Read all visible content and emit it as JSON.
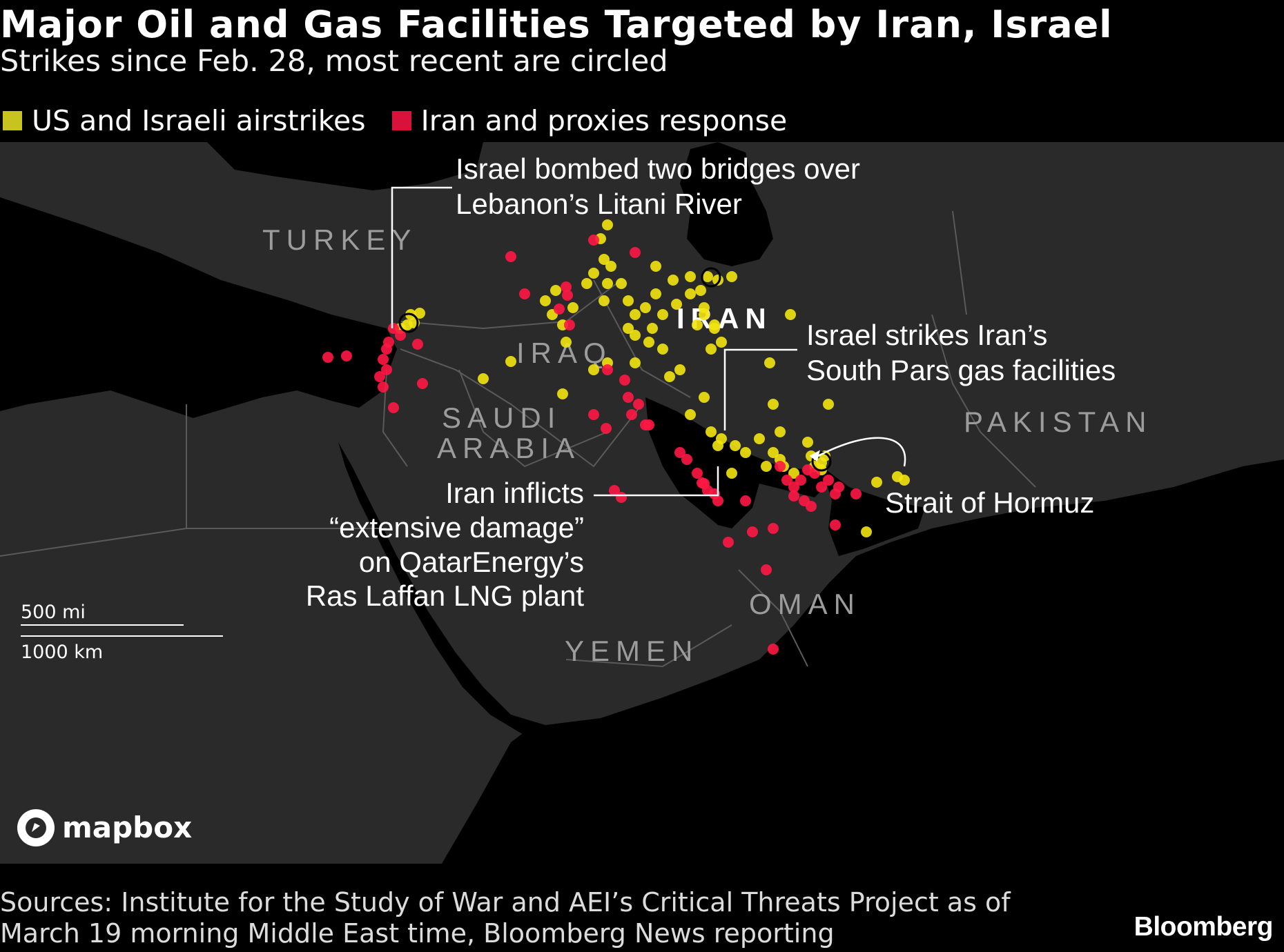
{
  "title": "Major Oil and Gas Facilities Targeted by Iran, Israel",
  "subtitle": "Strikes since Feb. 28, most recent are circled",
  "legend": [
    {
      "label": "US and Israeli airstrikes",
      "color": "#c9c320"
    },
    {
      "label": "Iran and proxies response",
      "color": "#d8123a"
    }
  ],
  "map": {
    "country_labels": [
      "TURKEY",
      "IRAN",
      "IRAQ",
      "SAUDI",
      "ARABIA",
      "PAKISTAN",
      "OMAN",
      "YEMEN"
    ],
    "annotations": {
      "litani": [
        "Israel bombed two bridges over",
        "Lebanon’s Litani River"
      ],
      "south_pars": [
        "Israel strikes Iran’s",
        "South Pars gas facilities"
      ],
      "hormuz": [
        "Strait of Hormuz"
      ],
      "ras_laffan": [
        "Iran inflicts",
        "“extensive damage”",
        "on QatarEnergy’s",
        "Ras Laffan LNG plant"
      ]
    },
    "scale": {
      "miles": "500 mi",
      "km": "1000 km"
    },
    "attribution": "mapbox",
    "colors": {
      "us_israel": "#f2e40f",
      "iran_proxies": "#ff1744",
      "land": "#2a2a2a",
      "water": "#000000"
    }
  },
  "sources": "Sources: Institute for the Study of War and AEI’s Critical Threats Project as of March 19 morning Middle East time, Bloomberg News reporting",
  "brand": "Bloomberg"
}
